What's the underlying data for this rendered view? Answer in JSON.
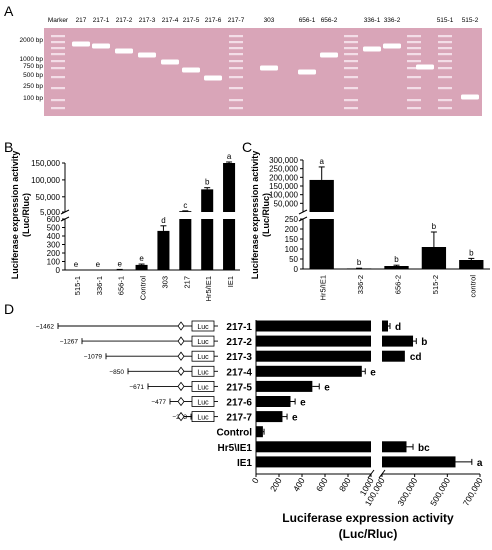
{
  "panel_labels": {
    "a": "A",
    "b": "B",
    "c": "C",
    "d": "D"
  },
  "gel": {
    "lane_labels": [
      "Marker",
      "217",
      "217-1",
      "217-2",
      "217-3",
      "217-4",
      "217-5",
      "217-6",
      "217-7",
      "303",
      "656-1",
      "656-2",
      "336-1",
      "336-2",
      "515-1",
      "515-2"
    ],
    "marker_labels": [
      "2000 bp",
      "1000 bp",
      "750 bp",
      "500 bp",
      "250 bp",
      "100 bp"
    ],
    "background_color": "#d9a5b8",
    "band_color": "#ffffff"
  },
  "chart_data": [
    {
      "panel": "B",
      "type": "bar",
      "categories": [
        "515-1",
        "336-1",
        "656-1",
        "Control",
        "303",
        "217",
        "Hr5/IE1",
        "IE1"
      ],
      "values": [
        0,
        0,
        5,
        60,
        460,
        7500,
        72000,
        150000
      ],
      "errors": [
        0,
        0,
        2,
        10,
        60,
        900,
        5000,
        3000
      ],
      "letters": [
        "e",
        "e",
        "e",
        "e",
        "d",
        "c",
        "b",
        "a"
      ],
      "ylabel": "Luciferase expression activity\n(Luc/Rluc)",
      "lower_ticks": [
        "0",
        "100",
        "200",
        "300",
        "400",
        "500",
        "600"
      ],
      "upper_ticks": [
        "5,000",
        "50,000",
        "100,000",
        "150,000"
      ],
      "axis_break": true
    },
    {
      "panel": "C",
      "type": "bar",
      "categories": [
        "Hr5/IE1",
        "336-2",
        "656-2",
        "515-2",
        "control"
      ],
      "values": [
        185000,
        3,
        15,
        110,
        45
      ],
      "errors": [
        75000,
        1,
        4,
        75,
        8
      ],
      "letters": [
        "a",
        "b",
        "b",
        "b",
        "b"
      ],
      "ylabel": "Luciferase expression activity\n(Luc/Rluc)",
      "lower_ticks": [
        "0",
        "50",
        "100",
        "150",
        "200",
        "250"
      ],
      "upper_ticks": [
        "50,000",
        "100,000",
        "150,000",
        "200,000",
        "250,000",
        "300,000"
      ],
      "axis_break": true
    },
    {
      "panel": "D",
      "type": "bar",
      "orientation": "horizontal",
      "categories": [
        "217-1",
        "217-2",
        "217-3",
        "217-4",
        "217-5",
        "217-6",
        "217-7",
        "Control",
        "Hr5\\IE1",
        "IE1"
      ],
      "construct_starts": [
        "−1462",
        "−1267",
        "−1079",
        "−850",
        "−671",
        "−477",
        "−263",
        "",
        "",
        ""
      ],
      "values": [
        40000,
        290000,
        240000,
        920,
        490,
        300,
        230,
        60,
        250000,
        550000
      ],
      "errors": [
        10000,
        20000,
        0,
        30,
        60,
        40,
        40,
        10,
        40000,
        100000
      ],
      "letters": [
        "d",
        "b",
        "cd",
        "e",
        "e",
        "e",
        "e",
        "",
        "bc",
        "a"
      ],
      "box_label": "Luc",
      "lower_ticks": [
        "0",
        "200",
        "400",
        "600",
        "800",
        "1000"
      ],
      "upper_ticks": [
        "100,000",
        "300,000",
        "500,000",
        "700,000"
      ],
      "xlabel": "Luciferase expression activity\n(Luc/Rluc)",
      "axis_break": true
    }
  ]
}
